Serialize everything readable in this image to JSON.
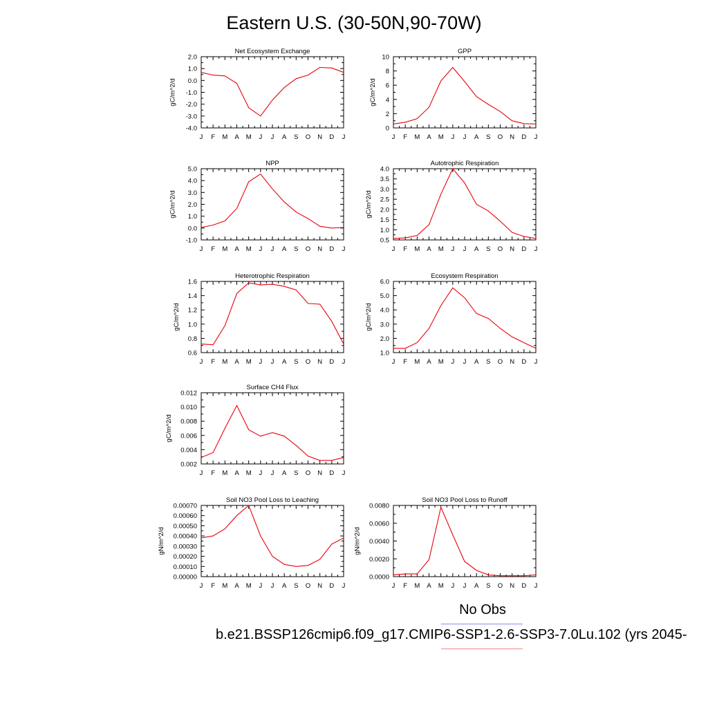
{
  "title": "Eastern U.S. (30-50N,90-70W)",
  "legend": {
    "obs_label": "No Obs",
    "case_label": "b.e21.BSSP126cmip6.f09_g17.CMIP6-SSP1-2.6-SSP3-7.0Lu.102 (yrs 2045-",
    "obs_color": "#8a8cf0",
    "case_color": "#f08a8a"
  },
  "months": [
    "J",
    "F",
    "M",
    "A",
    "M",
    "J",
    "J",
    "A",
    "S",
    "O",
    "N",
    "D",
    "J"
  ],
  "line_color": "#e8000b",
  "chart_data": [
    {
      "type": "line",
      "title": "Net Ecosystem Exchange",
      "ylabel": "gC/m^2/d",
      "ylim": [
        -4.0,
        2.0
      ],
      "yticks": [
        2.0,
        1.0,
        0.0,
        -1.0,
        -2.0,
        -3.0,
        -4.0
      ],
      "ytick_labels": [
        "2.0",
        "1.0",
        "0.0",
        "-1.0",
        "-2.0",
        "-3.0",
        "-4.0"
      ],
      "values": [
        0.68,
        0.45,
        0.38,
        -0.25,
        -2.3,
        -3.0,
        -1.65,
        -0.6,
        0.15,
        0.45,
        1.1,
        1.05,
        0.68
      ]
    },
    {
      "type": "line",
      "title": "GPP",
      "ylabel": "gC/m^2/d",
      "ylim": [
        0,
        10
      ],
      "yticks": [
        10,
        8,
        6,
        4,
        2,
        0
      ],
      "ytick_labels": [
        "10",
        "8",
        "6",
        "4",
        "2",
        "0"
      ],
      "values": [
        0.55,
        0.8,
        1.3,
        2.9,
        6.6,
        8.5,
        6.5,
        4.4,
        3.3,
        2.3,
        1.0,
        0.6,
        0.55
      ]
    },
    {
      "type": "line",
      "title": "NPP",
      "ylabel": "gC/m^2/d",
      "ylim": [
        -1.0,
        5.0
      ],
      "yticks": [
        5.0,
        4.0,
        3.0,
        2.0,
        1.0,
        0.0,
        -1.0
      ],
      "ytick_labels": [
        "5.0",
        "4.0",
        "3.0",
        "2.0",
        "1.0",
        "0.0",
        "-1.0"
      ],
      "values": [
        0.05,
        0.25,
        0.6,
        1.65,
        3.9,
        4.55,
        3.3,
        2.2,
        1.35,
        0.8,
        0.15,
        0.0,
        0.05
      ]
    },
    {
      "type": "line",
      "title": "Autotrophic Respiration",
      "ylabel": "gC/m^2/d",
      "ylim": [
        0.5,
        4.0
      ],
      "yticks": [
        4.0,
        3.5,
        3.0,
        2.5,
        2.0,
        1.5,
        1.0,
        0.5
      ],
      "ytick_labels": [
        "4.0",
        "3.5",
        "3.0",
        "2.5",
        "2.0",
        "1.5",
        "1.0",
        "0.5"
      ],
      "values": [
        0.57,
        0.6,
        0.72,
        1.25,
        2.75,
        4.0,
        3.3,
        2.25,
        1.92,
        1.42,
        0.87,
        0.67,
        0.57
      ]
    },
    {
      "type": "line",
      "title": "Heterotrophic Respiration",
      "ylabel": "gC/m^2/d",
      "ylim": [
        0.6,
        1.6
      ],
      "yticks": [
        1.6,
        1.4,
        1.2,
        1.0,
        0.8,
        0.6
      ],
      "ytick_labels": [
        "1.6",
        "1.4",
        "1.2",
        "1.0",
        "0.8",
        "0.6"
      ],
      "values": [
        0.72,
        0.71,
        0.98,
        1.43,
        1.58,
        1.55,
        1.56,
        1.53,
        1.48,
        1.29,
        1.28,
        1.04,
        0.72
      ]
    },
    {
      "type": "line",
      "title": "Ecosystem Respiration",
      "ylabel": "gC/m^2/d",
      "ylim": [
        1.0,
        6.0
      ],
      "yticks": [
        6.0,
        5.0,
        4.0,
        3.0,
        2.0,
        1.0
      ],
      "ytick_labels": [
        "6.0",
        "5.0",
        "4.0",
        "3.0",
        "2.0",
        "1.0"
      ],
      "values": [
        1.3,
        1.3,
        1.7,
        2.7,
        4.3,
        5.55,
        4.85,
        3.75,
        3.4,
        2.7,
        2.1,
        1.7,
        1.3
      ]
    },
    {
      "type": "line",
      "title": "Surface CH4 Flux",
      "ylabel": "gC/m^2/d",
      "ylim": [
        0.002,
        0.012
      ],
      "yticks": [
        0.012,
        0.01,
        0.008,
        0.006,
        0.004,
        0.002
      ],
      "ytick_labels": [
        "0.012",
        "0.010",
        "0.008",
        "0.006",
        "0.004",
        "0.002"
      ],
      "values": [
        0.0029,
        0.0036,
        0.007,
        0.0102,
        0.0068,
        0.0059,
        0.0064,
        0.0059,
        0.0046,
        0.0031,
        0.0025,
        0.0025,
        0.0029
      ]
    },
    {
      "type": "line",
      "title": "Soil NO3 Pool Loss to Leaching",
      "ylabel": "gN/m^2/d",
      "ylim": [
        0.0,
        0.0007
      ],
      "yticks": [
        0.0007,
        0.0006,
        0.0005,
        0.0004,
        0.0003,
        0.0002,
        0.0001,
        0.0
      ],
      "ytick_labels": [
        "0.00070",
        "0.00060",
        "0.00050",
        "0.00040",
        "0.00030",
        "0.00020",
        "0.00010",
        "0.00000"
      ],
      "values": [
        0.00038,
        0.0004,
        0.00047,
        0.0006,
        0.0007,
        0.0004,
        0.0002,
        0.00012,
        0.0001,
        0.00011,
        0.00017,
        0.00032,
        0.00038
      ]
    },
    {
      "type": "line",
      "title": "Soil NO3 Pool Loss to Runoff",
      "ylabel": "gN/m^2/d",
      "ylim": [
        0.0,
        0.008
      ],
      "yticks": [
        0.008,
        0.006,
        0.004,
        0.002,
        0.0
      ],
      "ytick_labels": [
        "0.0080",
        "0.0060",
        "0.0040",
        "0.0020",
        "0.0000"
      ],
      "values": [
        0.0002,
        0.0003,
        0.0003,
        0.0019,
        0.0078,
        0.0047,
        0.0017,
        0.0007,
        0.0002,
        0.0001,
        0.0001,
        0.0001,
        0.0002
      ]
    }
  ]
}
